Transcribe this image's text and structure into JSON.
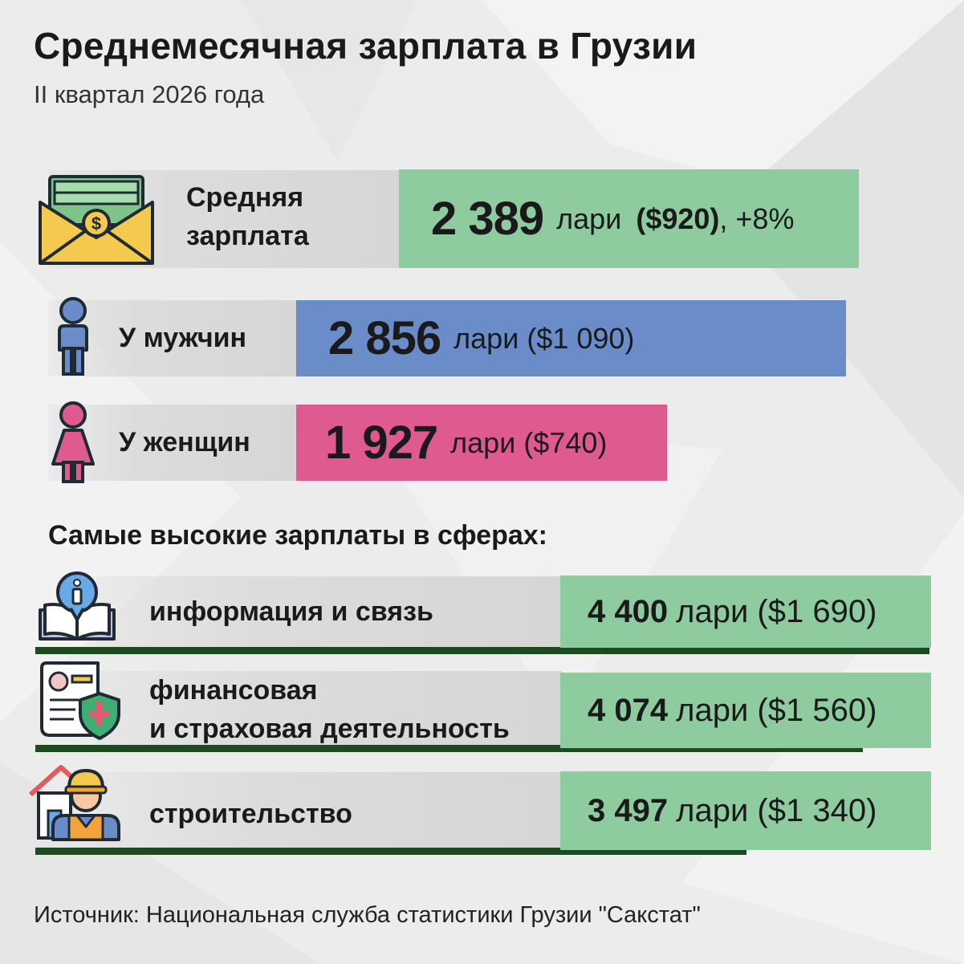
{
  "header": {
    "title": "Среднемесячная зарплата в Грузии",
    "subtitle": "II квартал 2026 года"
  },
  "average": {
    "label_line1": "Средняя",
    "label_line2": "зарплата",
    "value": "2 389",
    "unit": "лари",
    "usd": "($920)",
    "growth": ", +8%",
    "color": "#8ecb9e"
  },
  "men": {
    "label": "У мужчин",
    "value": "2 856",
    "unit": "лари ($1 090)",
    "color": "#6a8cc9"
  },
  "women": {
    "label": "У женщин",
    "value": "1 927",
    "unit": "лари ($740)",
    "color": "#de5a91"
  },
  "sectors": {
    "title": "Самые высокие зарплаты в сферах:",
    "items": [
      {
        "label_line1": "информация и связь",
        "label_line2": "",
        "value": "4 400",
        "unit": "лари ($1 690)",
        "icon": "info-book-icon"
      },
      {
        "label_line1": "финансовая",
        "label_line2": "и страховая деятельность",
        "value": "4 074",
        "unit": "лари ($1 560)",
        "icon": "insurance-document-icon"
      },
      {
        "label_line1": "строительство",
        "label_line2": "",
        "value": "3 497",
        "unit": "лари ($1 340)",
        "icon": "construction-worker-icon"
      }
    ],
    "box_color": "#8ecb9e",
    "underline_color": "#1d4a23"
  },
  "footer": {
    "source": "Источник: Национальная служба статистики Грузии \"Сакстат\""
  },
  "icons": [
    "money-envelope-icon",
    "man-icon",
    "woman-icon",
    "info-book-icon",
    "insurance-document-icon",
    "construction-worker-icon"
  ]
}
